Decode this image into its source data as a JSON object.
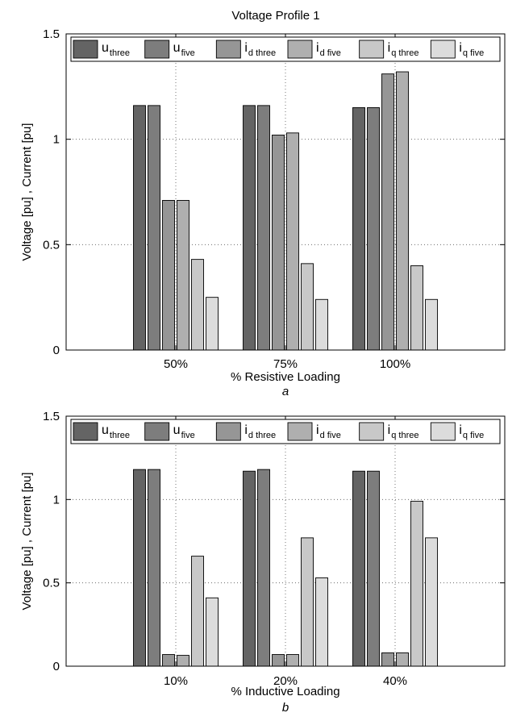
{
  "figure": {
    "title": "Voltage Profile 1"
  },
  "chart_data": [
    {
      "type": "bar",
      "label": "a",
      "xlabel": "% Resistive Loading",
      "ylabel": "Voltage [pu] , Current [pu]",
      "categories": [
        "50%",
        "75%",
        "100%"
      ],
      "ylim": [
        0,
        1.5
      ],
      "yticks": [
        "0",
        "0.5",
        "1",
        "1.5"
      ],
      "grid": "dotted",
      "legend_position": "top",
      "series": [
        {
          "name": "u three",
          "name_main": "u",
          "name_sub": "three",
          "color": "#646464",
          "values": [
            1.16,
            1.16,
            1.15
          ]
        },
        {
          "name": "u five",
          "name_main": "u",
          "name_sub": "five",
          "color": "#7d7d7d",
          "values": [
            1.16,
            1.16,
            1.15
          ]
        },
        {
          "name": "i d three",
          "name_main": "i",
          "name_sub": "d three",
          "color": "#969696",
          "values": [
            0.71,
            1.02,
            1.31
          ]
        },
        {
          "name": "i d five",
          "name_main": "i",
          "name_sub": "d five",
          "color": "#afafaf",
          "values": [
            0.71,
            1.03,
            1.32
          ]
        },
        {
          "name": "i q three",
          "name_main": "i",
          "name_sub": "q three",
          "color": "#c8c8c8",
          "values": [
            0.43,
            0.41,
            0.4
          ]
        },
        {
          "name": "i q five",
          "name_main": "i",
          "name_sub": "q five",
          "color": "#dcdcdc",
          "values": [
            0.25,
            0.24,
            0.24
          ]
        }
      ]
    },
    {
      "type": "bar",
      "label": "b",
      "xlabel": "% Inductive Loading",
      "ylabel": "Voltage [pu] , Current [pu]",
      "categories": [
        "10%",
        "20%",
        "40%"
      ],
      "ylim": [
        0,
        1.5
      ],
      "yticks": [
        "0",
        "0.5",
        "1",
        "1.5"
      ],
      "grid": "dotted",
      "legend_position": "top",
      "series": [
        {
          "name": "u three",
          "name_main": "u",
          "name_sub": "three",
          "color": "#646464",
          "values": [
            1.18,
            1.17,
            1.17
          ]
        },
        {
          "name": "u five",
          "name_main": "u",
          "name_sub": "five",
          "color": "#7d7d7d",
          "values": [
            1.18,
            1.18,
            1.17
          ]
        },
        {
          "name": "i d three",
          "name_main": "i",
          "name_sub": "d three",
          "color": "#969696",
          "values": [
            0.07,
            0.07,
            0.08
          ]
        },
        {
          "name": "i d five",
          "name_main": "i",
          "name_sub": "d five",
          "color": "#afafaf",
          "values": [
            0.065,
            0.07,
            0.08
          ]
        },
        {
          "name": "i q three",
          "name_main": "i",
          "name_sub": "q three",
          "color": "#c8c8c8",
          "values": [
            0.66,
            0.77,
            0.99
          ]
        },
        {
          "name": "i q five",
          "name_main": "i",
          "name_sub": "q five",
          "color": "#dcdcdc",
          "values": [
            0.41,
            0.53,
            0.77
          ]
        }
      ]
    }
  ]
}
